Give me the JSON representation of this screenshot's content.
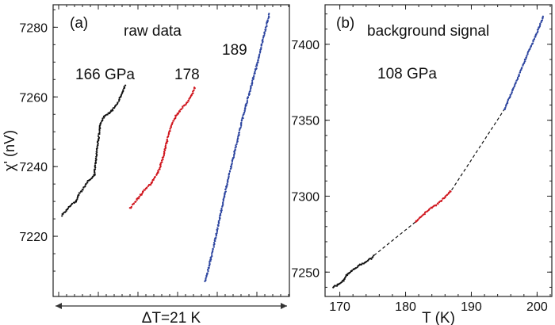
{
  "chart_data": [
    {
      "type": "scatter",
      "panel_label": "(a)",
      "annotation": "raw data",
      "ylabel": "χ' (nV)",
      "xlabel": "ΔT=21 K",
      "x_ticks_labeled": false,
      "ylim": [
        7205,
        7286
      ],
      "y_ticks": [
        7220,
        7240,
        7260,
        7280
      ],
      "grid": false,
      "colors": {
        "166": "#111111",
        "178": "#d0161e",
        "189": "#2e46a0"
      },
      "series": [
        {
          "label": "166 GPa",
          "color": "#111111",
          "x": [
            0,
            0.6,
            1.2,
            1.8,
            2.1,
            2.3,
            2.6,
            3.0,
            3.4,
            3.8,
            4.2,
            4.6,
            5.0,
            5.4,
            5.8,
            6.2,
            6.6,
            7.0,
            7.4,
            7.8,
            8.2
          ],
          "y": [
            7226,
            7227.5,
            7229,
            7230,
            7231.5,
            7232.5,
            7233,
            7234.5,
            7236,
            7236.5,
            7237.5,
            7246,
            7252.5,
            7254,
            7255,
            7255.5,
            7256.5,
            7257.5,
            7259,
            7261,
            7263.5
          ]
        },
        {
          "label": "178",
          "color": "#d0161e",
          "x": [
            0,
            0.5,
            1.0,
            1.5,
            2.0,
            2.5,
            3.0,
            3.5,
            4.0,
            4.5,
            5.0,
            5.5,
            6.0,
            6.5,
            7.0,
            7.5,
            7.8
          ],
          "y": [
            7228,
            7229.5,
            7231,
            7232.5,
            7234,
            7235,
            7237,
            7239,
            7243,
            7248,
            7252,
            7254.5,
            7256,
            7257.5,
            7259,
            7261,
            7263
          ]
        },
        {
          "label": "189",
          "color": "#2e46a0",
          "x": [
            0,
            1.0,
            2.0,
            3.0,
            4.0,
            5.0,
            6.0,
            7.0,
            8.0,
            8.6
          ],
          "y": [
            7207,
            7216,
            7226,
            7236,
            7245,
            7254,
            7262,
            7270,
            7279,
            7284
          ]
        }
      ]
    },
    {
      "type": "scatter",
      "panel_label": "(b)",
      "annotation": "background signal",
      "pressure_label": "108 GPa",
      "xlabel": "T (K)",
      "ylabel": "",
      "xlim": [
        168,
        202
      ],
      "ylim": [
        7235,
        7425
      ],
      "x_ticks": [
        170,
        180,
        190,
        200
      ],
      "y_ticks": [
        7250,
        7300,
        7350,
        7400
      ],
      "grid": false,
      "colors": {
        "low": "#111111",
        "mid": "#d0161e",
        "high": "#2e46a0",
        "connector": "#111111"
      },
      "series": [
        {
          "color": "#111111",
          "x": [
            169,
            169.8,
            170.5,
            171,
            171.8,
            172.5,
            173.2,
            174,
            174.8,
            175.2
          ],
          "y": [
            7240,
            7242,
            7244,
            7248,
            7251,
            7253,
            7255,
            7257,
            7259,
            7261
          ]
        },
        {
          "color": "#d0161e",
          "x": [
            181.5,
            182.2,
            183,
            183.8,
            184.6,
            185.4,
            186.2,
            187
          ],
          "y": [
            7283,
            7286,
            7289,
            7292,
            7294,
            7297,
            7300,
            7304
          ]
        },
        {
          "color": "#2e46a0",
          "x": [
            195,
            196,
            197,
            198,
            199,
            200,
            201
          ],
          "y": [
            7357,
            7367,
            7377,
            7388,
            7398,
            7408,
            7419
          ]
        }
      ],
      "connectors": [
        {
          "style": "dashed",
          "x": [
            175.2,
            181.5
          ],
          "y": [
            7261,
            7283
          ]
        },
        {
          "style": "dashed",
          "x": [
            187,
            195
          ],
          "y": [
            7304,
            7357
          ]
        }
      ]
    }
  ]
}
